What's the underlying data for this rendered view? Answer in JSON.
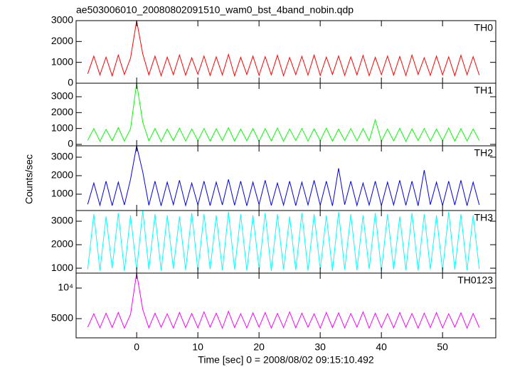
{
  "chart_data": [
    {
      "type": "line",
      "title": "ae503006010_20080802091510_wam0_bst_4band_nobin.qdp",
      "label": "TH0",
      "color": "#ff0000",
      "x": [
        -8,
        -7,
        -6,
        -5,
        -4,
        -3,
        -2,
        -1,
        0,
        1,
        2,
        3,
        4,
        5,
        6,
        7,
        8,
        9,
        10,
        11,
        12,
        13,
        14,
        15,
        16,
        17,
        18,
        19,
        20,
        21,
        22,
        23,
        24,
        25,
        26,
        27,
        28,
        29,
        30,
        31,
        32,
        33,
        34,
        35,
        36,
        37,
        38,
        39,
        40,
        41,
        42,
        43,
        44,
        45,
        46,
        47,
        48,
        49,
        50,
        51,
        52,
        53,
        54,
        55,
        56
      ],
      "values": [
        450,
        1300,
        400,
        1250,
        350,
        1350,
        420,
        1200,
        3000,
        1400,
        400,
        1300,
        360,
        1250,
        410,
        1350,
        390,
        1220,
        430,
        1300,
        370,
        1260,
        400,
        1380,
        350,
        1240,
        420,
        1300,
        380,
        1270,
        400,
        1340,
        360,
        1230,
        410,
        1290,
        390,
        1350,
        370,
        1250,
        420,
        1310,
        380,
        1260,
        400,
        1330,
        360,
        1240,
        410,
        1300,
        390,
        1280,
        370,
        1350,
        420,
        1220,
        380,
        1300,
        400,
        1260,
        360,
        1340,
        410,
        1270,
        390
      ],
      "xlim": [
        -9.9,
        58.7
      ],
      "xticks": [
        0,
        10,
        20,
        30,
        40,
        50
      ],
      "ylim": [
        0,
        3000
      ],
      "yticks": [
        0,
        1000,
        2000,
        3000
      ]
    },
    {
      "type": "line",
      "label": "TH1",
      "color": "#00ff00",
      "x": [
        -8,
        -7,
        -6,
        -5,
        -4,
        -3,
        -2,
        -1,
        0,
        1,
        2,
        3,
        4,
        5,
        6,
        7,
        8,
        9,
        10,
        11,
        12,
        13,
        14,
        15,
        16,
        17,
        18,
        19,
        20,
        21,
        22,
        23,
        24,
        25,
        26,
        27,
        28,
        29,
        30,
        31,
        32,
        33,
        34,
        35,
        36,
        37,
        38,
        39,
        40,
        41,
        42,
        43,
        44,
        45,
        46,
        47,
        48,
        49,
        50,
        51,
        52,
        53,
        54,
        55,
        56
      ],
      "values": [
        250,
        1000,
        200,
        950,
        230,
        1050,
        210,
        980,
        3850,
        1400,
        220,
        1000,
        190,
        960,
        240,
        1020,
        210,
        970,
        230,
        1000,
        200,
        980,
        240,
        1050,
        210,
        960,
        230,
        1000,
        190,
        990,
        220,
        1030,
        200,
        970,
        240,
        1000,
        210,
        980,
        230,
        1020,
        200,
        960,
        240,
        1000,
        210,
        990,
        230,
        1550,
        200,
        970,
        220,
        1010,
        190,
        980,
        240,
        1000,
        210,
        960,
        230,
        1030,
        200,
        990,
        220,
        970,
        240
      ],
      "xlim": [
        -9.9,
        58.7
      ],
      "xticks": [
        0,
        10,
        20,
        30,
        40,
        50
      ],
      "ylim": [
        -90,
        3850
      ],
      "yticks": [
        0,
        1000,
        2000,
        3000
      ]
    },
    {
      "type": "line",
      "label": "TH2",
      "ylabel": "Counts/sec",
      "color": "#0000e6",
      "x": [
        -8,
        -7,
        -6,
        -5,
        -4,
        -3,
        -2,
        -1,
        0,
        1,
        2,
        3,
        4,
        5,
        6,
        7,
        8,
        9,
        10,
        11,
        12,
        13,
        14,
        15,
        16,
        17,
        18,
        19,
        20,
        21,
        22,
        23,
        24,
        25,
        26,
        27,
        28,
        29,
        30,
        31,
        32,
        33,
        34,
        35,
        36,
        37,
        38,
        39,
        40,
        41,
        42,
        43,
        44,
        45,
        46,
        47,
        48,
        49,
        50,
        51,
        52,
        53,
        54,
        55,
        56
      ],
      "values": [
        450,
        1600,
        400,
        1700,
        380,
        1650,
        420,
        1800,
        3615,
        2200,
        400,
        1700,
        370,
        1650,
        430,
        1750,
        390,
        1600,
        410,
        1700,
        380,
        1650,
        420,
        1800,
        400,
        1700,
        370,
        1650,
        430,
        1750,
        390,
        1600,
        410,
        1700,
        380,
        1650,
        420,
        1750,
        400,
        1700,
        370,
        2400,
        430,
        1700,
        390,
        1600,
        410,
        1700,
        380,
        1650,
        420,
        1750,
        400,
        1700,
        370,
        2300,
        430,
        1650,
        390,
        1700,
        410,
        1750,
        380,
        1650,
        420
      ],
      "xlim": [
        -9.9,
        58.7
      ],
      "xticks": [
        0,
        10,
        20,
        30,
        40,
        50
      ],
      "ylim": [
        115,
        3615
      ],
      "yticks": [
        1000,
        2000,
        3000
      ]
    },
    {
      "type": "line",
      "label": "TH3",
      "color": "#00ffff",
      "x": [
        -8,
        -7,
        -6,
        -5,
        -4,
        -3,
        -2,
        -1,
        0,
        1,
        2,
        3,
        4,
        5,
        6,
        7,
        8,
        9,
        10,
        11,
        12,
        13,
        14,
        15,
        16,
        17,
        18,
        19,
        20,
        21,
        22,
        23,
        24,
        25,
        26,
        27,
        28,
        29,
        30,
        31,
        32,
        33,
        34,
        35,
        36,
        37,
        38,
        39,
        40,
        41,
        42,
        43,
        44,
        45,
        46,
        47,
        48,
        49,
        50,
        51,
        52,
        53,
        54,
        55,
        56
      ],
      "values": [
        950,
        3300,
        900,
        3200,
        1000,
        3350,
        880,
        3250,
        920,
        3455,
        950,
        3300,
        900,
        3250,
        980,
        3200,
        920,
        3350,
        890,
        3300,
        960,
        3250,
        910,
        3400,
        940,
        3300,
        900,
        3250,
        970,
        3350,
        880,
        3300,
        950,
        3200,
        920,
        3350,
        900,
        3300,
        960,
        3250,
        890,
        3400,
        940,
        3300,
        910,
        3250,
        970,
        3350,
        880,
        3300,
        950,
        3200,
        920,
        3350,
        900,
        3300,
        960,
        3250,
        890,
        3400,
        940,
        3300,
        910,
        3250,
        960
      ],
      "xlim": [
        -9.9,
        58.7
      ],
      "xticks": [
        0,
        10,
        20,
        30,
        40,
        50
      ],
      "ylim": [
        790,
        3455
      ],
      "yticks": [
        1000,
        2000,
        3000
      ]
    },
    {
      "type": "line",
      "label": "TH0123",
      "xlabel": "Time [sec] 0 = 2008/08/02 09:15:10.492",
      "color": "#ff00ff",
      "x": [
        -8,
        -7,
        -6,
        -5,
        -4,
        -3,
        -2,
        -1,
        0,
        1,
        2,
        3,
        4,
        5,
        6,
        7,
        8,
        9,
        10,
        11,
        12,
        13,
        14,
        15,
        16,
        17,
        18,
        19,
        20,
        21,
        22,
        23,
        24,
        25,
        26,
        27,
        28,
        29,
        30,
        31,
        32,
        33,
        34,
        35,
        36,
        37,
        38,
        39,
        40,
        41,
        42,
        43,
        44,
        45,
        46,
        47,
        48,
        49,
        50,
        51,
        52,
        53,
        54,
        55,
        56
      ],
      "values": [
        3600,
        5800,
        3500,
        5900,
        3550,
        6000,
        3450,
        5700,
        12440,
        6500,
        3500,
        5900,
        3600,
        5800,
        3450,
        6000,
        3550,
        5850,
        3500,
        6100,
        3600,
        5900,
        3450,
        6200,
        3550,
        5800,
        3500,
        5950,
        3600,
        6000,
        3450,
        5850,
        3550,
        6100,
        3500,
        5900,
        3600,
        5800,
        3450,
        6000,
        3550,
        5950,
        3500,
        5850,
        3600,
        6100,
        3450,
        5900,
        3550,
        5800,
        3500,
        6000,
        3600,
        5850,
        3450,
        5900,
        3550,
        6000,
        3500,
        5800,
        3600,
        5950,
        3450,
        5850,
        3550
      ],
      "xlim": [
        -9.9,
        58.7
      ],
      "xticks": [
        0,
        10,
        20,
        30,
        40,
        50
      ],
      "ylim": [
        1860,
        12440
      ],
      "yticks": [
        5000,
        {
          "value": 10000,
          "label": "10⁴"
        }
      ]
    }
  ]
}
